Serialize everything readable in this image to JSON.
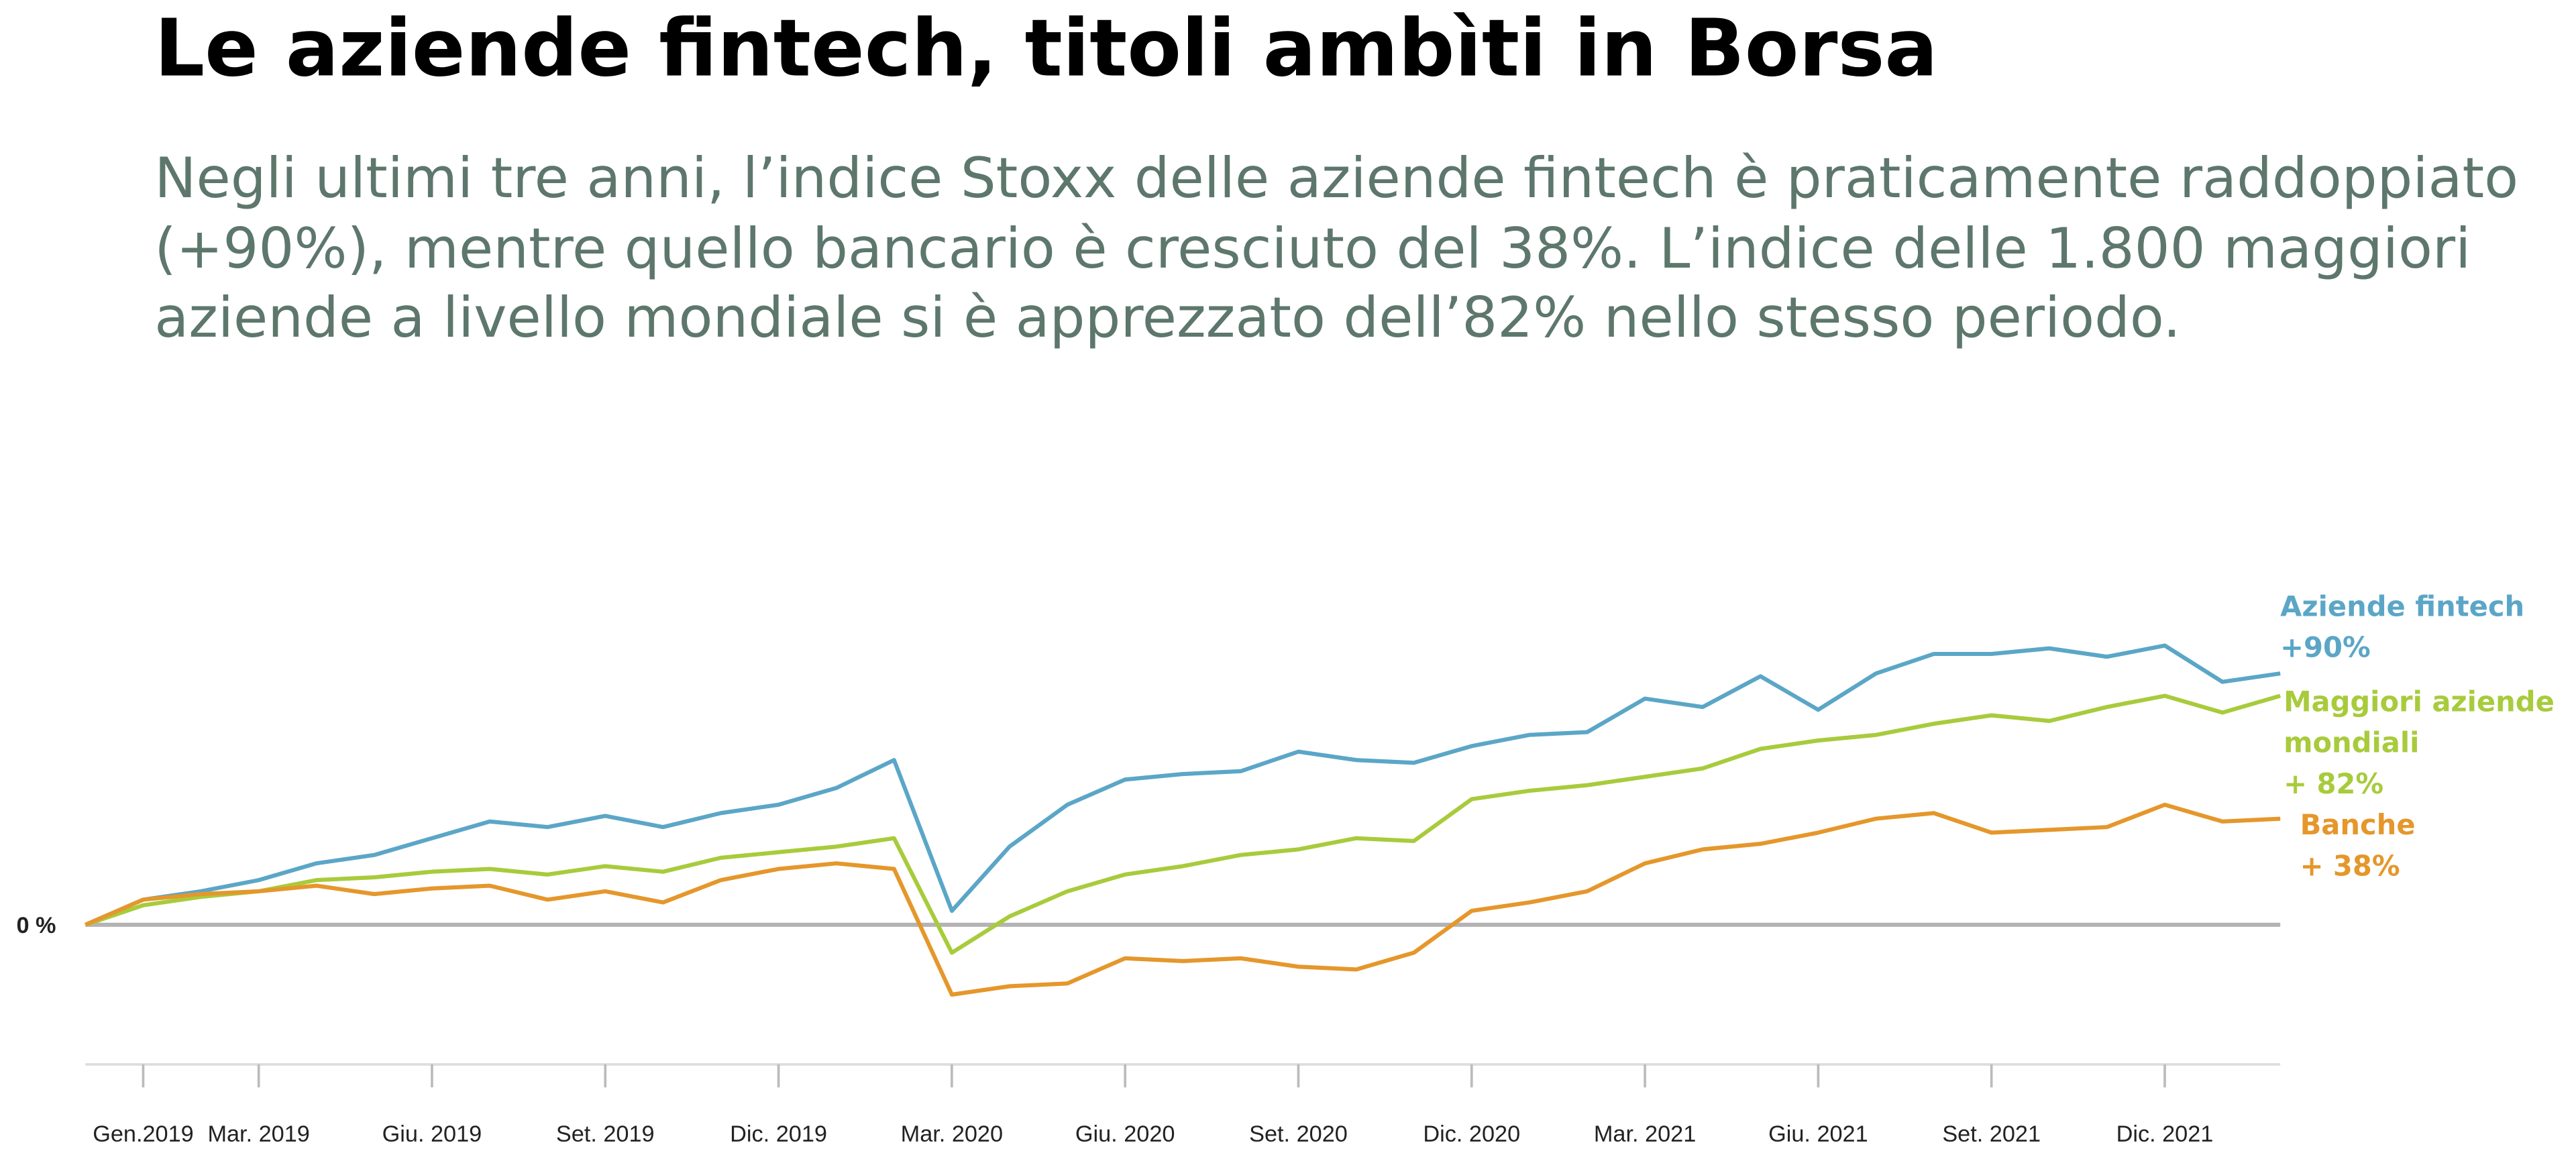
{
  "chart_data": {
    "type": "line",
    "title": "Le aziende fintech, titoli ambìti in Borsa",
    "subtitle": [
      "Negli ultimi tre anni, l’indice Stoxx delle aziende fintech è praticamente raddoppiato",
      "(+90%), mentre quello bancario è cresciuto del 38%. L’indice delle 1.800 maggiori",
      "aziende a livello mondiale si è apprezzato dell’82% nello stesso periodo."
    ],
    "x": [
      "2018-12",
      "2019-01",
      "2019-02",
      "2019-03",
      "2019-04",
      "2019-05",
      "2019-06",
      "2019-07",
      "2019-08",
      "2019-09",
      "2019-10",
      "2019-11",
      "2019-12",
      "2020-01",
      "2020-02",
      "2020-03",
      "2020-04",
      "2020-05",
      "2020-06",
      "2020-07",
      "2020-08",
      "2020-09",
      "2020-10",
      "2020-11",
      "2020-12",
      "2021-01",
      "2021-02",
      "2021-03",
      "2021-04",
      "2021-05",
      "2021-06",
      "2021-07",
      "2021-08",
      "2021-09",
      "2021-10",
      "2021-11",
      "2021-12",
      "2022-01",
      "2022-02"
    ],
    "xticks": [
      {
        "value": "2019-01",
        "label": "Gen.2019"
      },
      {
        "value": "2019-03",
        "label": "Mar. 2019"
      },
      {
        "value": "2019-06",
        "label": "Giu. 2019"
      },
      {
        "value": "2019-09",
        "label": "Set. 2019"
      },
      {
        "value": "2019-12",
        "label": "Dic. 2019"
      },
      {
        "value": "2020-03",
        "label": "Mar. 2020"
      },
      {
        "value": "2020-06",
        "label": "Giu. 2020"
      },
      {
        "value": "2020-09",
        "label": "Set. 2020"
      },
      {
        "value": "2020-12",
        "label": "Dic. 2020"
      },
      {
        "value": "2021-03",
        "label": "Mar. 2021"
      },
      {
        "value": "2021-06",
        "label": "Giu. 2021"
      },
      {
        "value": "2021-09",
        "label": "Set. 2021"
      },
      {
        "value": "2021-12",
        "label": "Dic. 2021"
      }
    ],
    "ylim": [
      -50,
      110
    ],
    "yticks": [
      {
        "value": 0,
        "label": "0 %"
      }
    ],
    "series": [
      {
        "label": [
          "Aziende fintech",
          "+90%"
        ],
        "color": "#5ba6c7",
        "values": [
          0,
          9,
          12,
          16,
          22,
          25,
          31,
          37,
          35,
          39,
          35,
          40,
          43,
          49,
          59,
          5,
          28,
          43,
          52,
          54,
          55,
          62,
          59,
          58,
          64,
          68,
          69,
          81,
          78,
          89,
          77,
          90,
          97,
          97,
          99,
          96,
          100,
          87,
          90
        ]
      },
      {
        "label": [
          "Maggiori aziende",
          "mondiali",
          "+ 82%"
        ],
        "color": "#a8cb3c",
        "values": [
          0,
          7,
          10,
          12,
          16,
          17,
          19,
          20,
          18,
          21,
          19,
          24,
          26,
          28,
          31,
          -10,
          3,
          12,
          18,
          21,
          25,
          27,
          31,
          30,
          45,
          48,
          50,
          53,
          56,
          63,
          66,
          68,
          72,
          75,
          73,
          78,
          82,
          76,
          82
        ]
      },
      {
        "label": [
          "Banche",
          "+ 38%"
        ],
        "color": "#e5972b",
        "values": [
          0,
          9,
          11,
          12,
          14,
          11,
          13,
          14,
          9,
          12,
          8,
          16,
          20,
          22,
          20,
          -25,
          -22,
          -21,
          -12,
          -13,
          -12,
          -15,
          -16,
          -10,
          5,
          8,
          12,
          22,
          27,
          29,
          33,
          38,
          40,
          33,
          34,
          35,
          43,
          37,
          38
        ]
      }
    ]
  }
}
